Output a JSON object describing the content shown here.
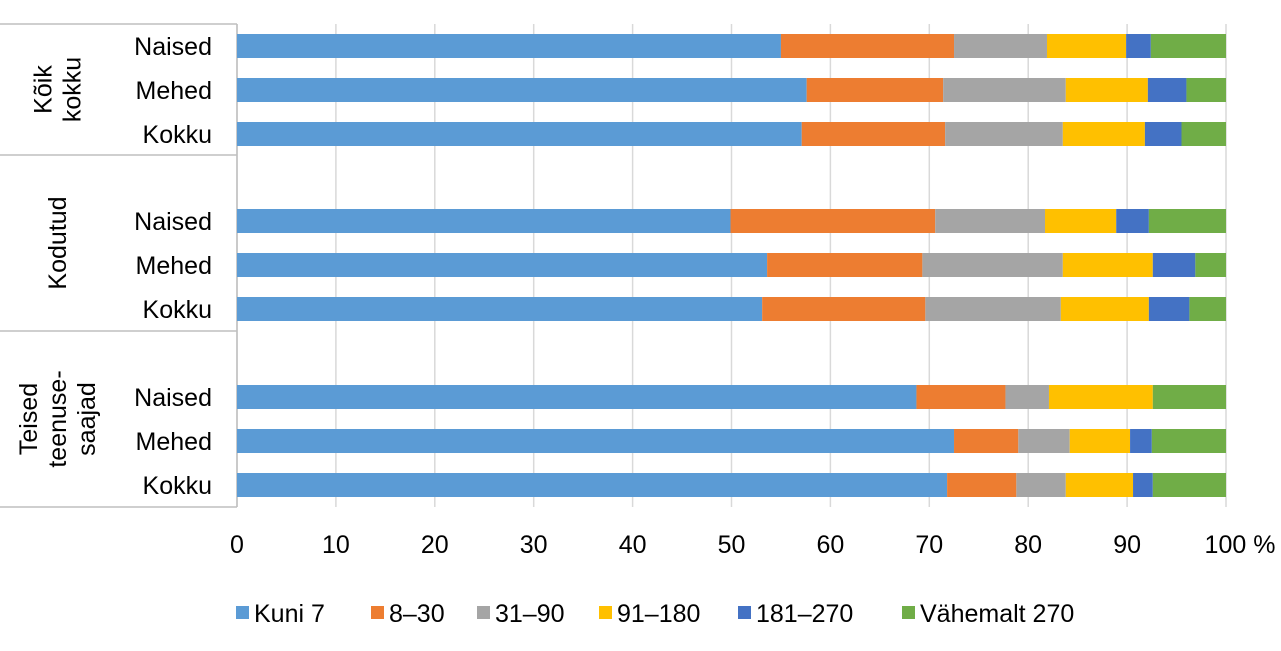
{
  "chart_data": {
    "type": "bar",
    "orientation": "horizontal",
    "stacked": true,
    "xlim": [
      0,
      100
    ],
    "x_ticks": [
      "0",
      "10",
      "20",
      "30",
      "40",
      "50",
      "60",
      "70",
      "80",
      "90",
      "100 %"
    ],
    "grid": true,
    "legend_position": "bottom",
    "groups": [
      {
        "label": "Kõik kokku",
        "label_lines": [
          "Kõik",
          "kokku"
        ],
        "categories": [
          "Naised",
          "Mehed",
          "Kokku"
        ]
      },
      {
        "label": "Kodutud",
        "label_lines": [
          "Kodutud"
        ],
        "categories": [
          "Naised",
          "Mehed",
          "Kokku"
        ]
      },
      {
        "label": "Teised teenuse-saajad",
        "label_lines": [
          "Teised",
          "teenuse-",
          "saajad"
        ],
        "categories": [
          "Naised",
          "Mehed",
          "Kokku"
        ]
      }
    ],
    "series": [
      {
        "name": "Kuni 7",
        "color": "#5B9BD5",
        "values": [
          [
            55.0,
            57.6,
            57.1
          ],
          [
            49.9,
            53.6,
            53.1
          ],
          [
            68.7,
            72.5,
            71.8
          ]
        ]
      },
      {
        "name": "8–30",
        "color": "#ED7D31",
        "values": [
          [
            17.5,
            13.8,
            14.5
          ],
          [
            20.7,
            15.7,
            16.5
          ],
          [
            9.0,
            6.5,
            7.0
          ]
        ]
      },
      {
        "name": "31–90",
        "color": "#A5A5A5",
        "values": [
          [
            9.4,
            12.4,
            11.9
          ],
          [
            11.1,
            14.2,
            13.7
          ],
          [
            4.4,
            5.2,
            5.0
          ]
        ]
      },
      {
        "name": "91–180",
        "color": "#FFC000",
        "values": [
          [
            8.0,
            8.3,
            8.3
          ],
          [
            7.2,
            9.1,
            8.9
          ],
          [
            10.5,
            6.1,
            6.8
          ]
        ]
      },
      {
        "name": "181–270",
        "color": "#4472C4",
        "values": [
          [
            2.5,
            3.9,
            3.7
          ],
          [
            3.3,
            4.3,
            4.1
          ],
          [
            0.0,
            2.2,
            2.0
          ]
        ]
      },
      {
        "name": "Vähemalt 270",
        "color": "#70AD47",
        "values": [
          [
            7.6,
            4.0,
            4.5
          ],
          [
            7.8,
            3.1,
            3.7
          ],
          [
            7.4,
            7.5,
            7.4
          ]
        ]
      }
    ]
  }
}
